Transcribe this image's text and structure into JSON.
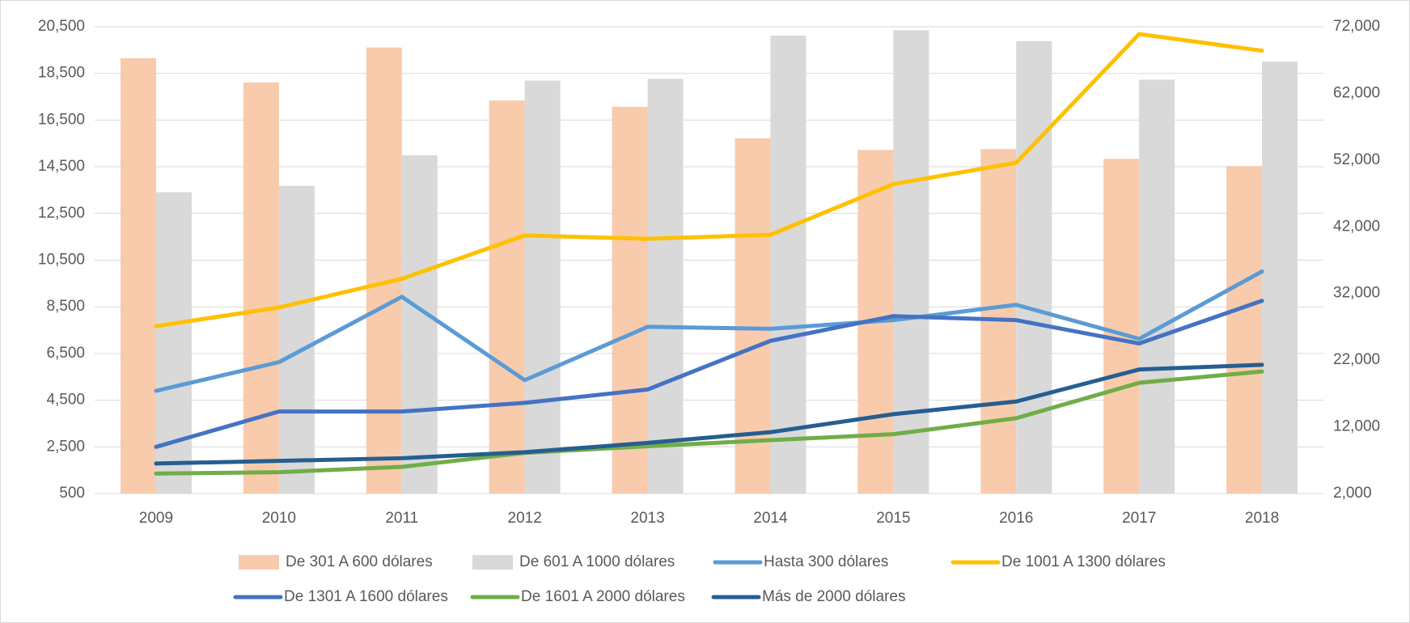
{
  "chart_data": {
    "type": "combo",
    "categories": [
      "2009",
      "2010",
      "2011",
      "2012",
      "2013",
      "2014",
      "2015",
      "2016",
      "2017",
      "2018"
    ],
    "series": [
      {
        "name": "De 301 A 600 dólares",
        "type": "bar",
        "axis": "y",
        "color": "#f8cbad",
        "values": [
          19150,
          18110,
          19610,
          17340,
          17070,
          15720,
          15220,
          15260,
          14840,
          14530
        ]
      },
      {
        "name": "De 601 A 1000 dólares",
        "type": "bar",
        "axis": "y",
        "color": "#d9d9d9",
        "values": [
          13410,
          13680,
          14990,
          18190,
          18270,
          20120,
          20350,
          19880,
          18230,
          19000
        ]
      },
      {
        "name": "Hasta 300 dólares",
        "type": "line",
        "axis": "y2",
        "color": "#5b9bd5",
        "values": [
          17400,
          21700,
          31500,
          19000,
          27000,
          26700,
          28000,
          30300,
          25200,
          35300
        ]
      },
      {
        "name": "De 1001 A 1300 dólares",
        "type": "line",
        "axis": "y2",
        "color": "#ffc000",
        "values": [
          27100,
          29900,
          34200,
          40700,
          40200,
          40800,
          48400,
          51600,
          70900,
          68400
        ]
      },
      {
        "name": "De 1301 A 1600 dólares",
        "type": "line",
        "axis": "y2",
        "color": "#4472c4",
        "values": [
          9000,
          14300,
          14300,
          15600,
          17600,
          24900,
          28600,
          28000,
          24500,
          30900
        ]
      },
      {
        "name": "De 1601 A 2000 dólares",
        "type": "line",
        "axis": "y2",
        "color": "#70ad47",
        "values": [
          5000,
          5200,
          6000,
          8100,
          9100,
          10000,
          10900,
          13300,
          18600,
          20300
        ]
      },
      {
        "name": "Más de 2000 dólares",
        "type": "line",
        "axis": "y2",
        "color": "#255e91",
        "values": [
          6500,
          6900,
          7300,
          8200,
          9600,
          11200,
          13900,
          15800,
          20600,
          21300
        ]
      }
    ],
    "ylim": [
      500,
      20500
    ],
    "yticks": [
      500,
      {
        "value": 2500,
        "label": "2,500"
      },
      {
        "value": 4500,
        "label": "4,500"
      },
      {
        "value": 6500,
        "label": "6,500"
      },
      {
        "value": 8500,
        "label": "8,500"
      },
      {
        "value": 10500,
        "label": "10,500"
      },
      {
        "value": 12500,
        "label": "12,500"
      },
      {
        "value": 14500,
        "label": "14,500"
      },
      {
        "value": 16500,
        "label": "16,500"
      },
      {
        "value": 18500,
        "label": "18,500"
      },
      {
        "value": 20500,
        "label": "20,500"
      }
    ],
    "y2lim": [
      2000,
      72000
    ],
    "y2ticks": [
      {
        "value": 2000,
        "label": "2,000"
      },
      {
        "value": 12000,
        "label": "12,000"
      },
      {
        "value": 22000,
        "label": "22,000"
      },
      {
        "value": 32000,
        "label": "32,000"
      },
      {
        "value": 42000,
        "label": "42,000"
      },
      {
        "value": 52000,
        "label": "52,000"
      },
      {
        "value": 62000,
        "label": "62,000"
      },
      {
        "value": 72000,
        "label": "72,000"
      }
    ],
    "grid": true,
    "legend": "bottom"
  }
}
